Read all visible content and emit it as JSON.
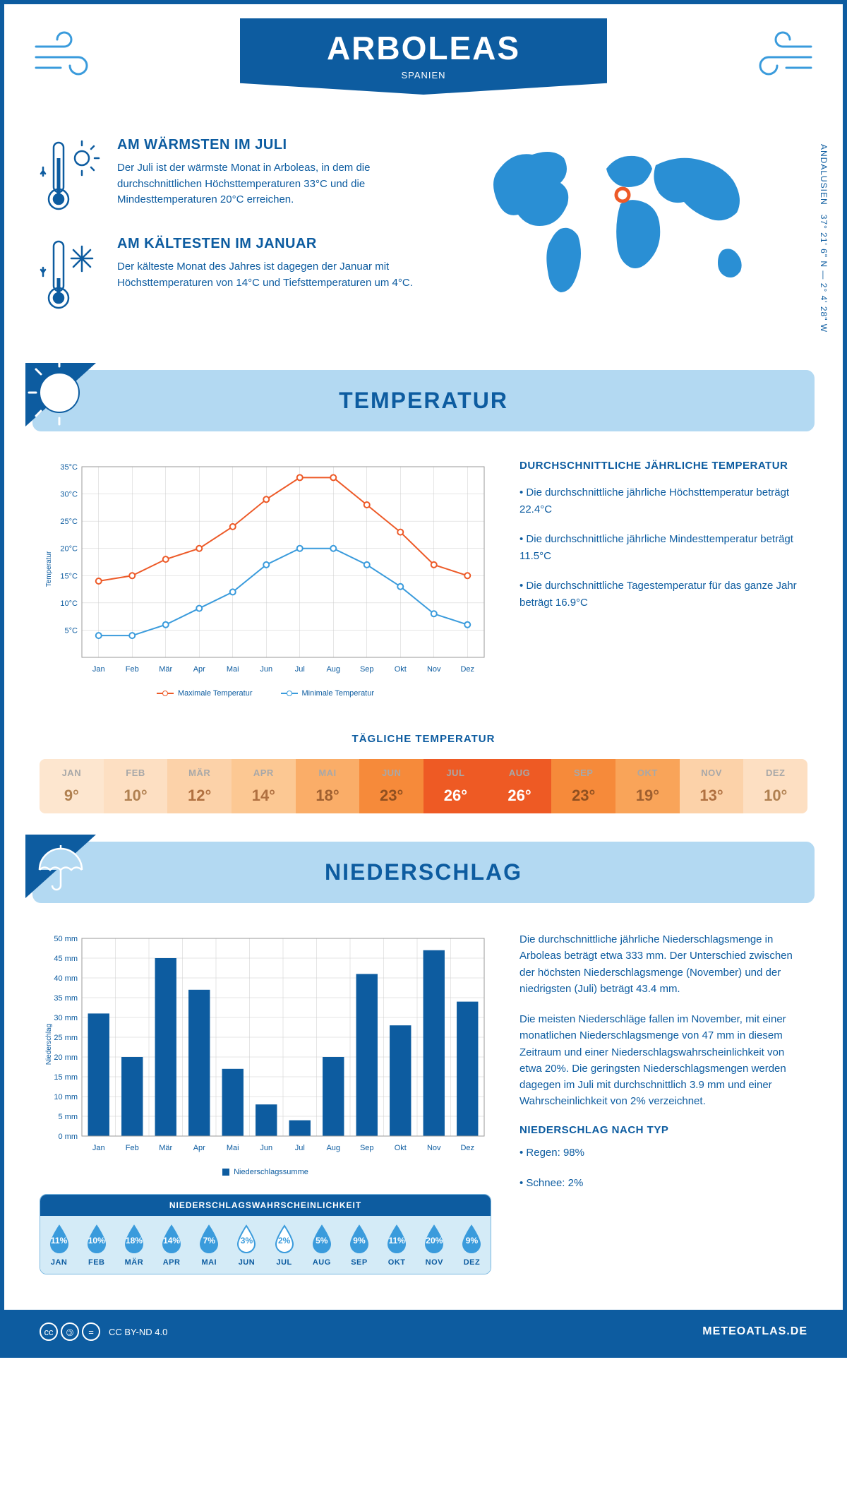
{
  "header": {
    "title": "ARBOLEAS",
    "country": "SPANIEN",
    "coords": "37° 21' 6\" N — 2° 4' 28\" W",
    "region": "ANDALUSIEN"
  },
  "intro": {
    "warm": {
      "title": "AM WÄRMSTEN IM JULI",
      "text": "Der Juli ist der wärmste Monat in Arboleas, in dem die durchschnittlichen Höchsttemperaturen 33°C und die Mindesttemperaturen 20°C erreichen."
    },
    "cold": {
      "title": "AM KÄLTESTEN IM JANUAR",
      "text": "Der kälteste Monat des Jahres ist dagegen der Januar mit Höchsttemperaturen von 14°C und Tiefsttemperaturen um 4°C."
    }
  },
  "sections": {
    "temperature": "TEMPERATUR",
    "precipitation": "NIEDERSCHLAG"
  },
  "temp_chart": {
    "months": [
      "Jan",
      "Feb",
      "Mär",
      "Apr",
      "Mai",
      "Jun",
      "Jul",
      "Aug",
      "Sep",
      "Okt",
      "Nov",
      "Dez"
    ],
    "max": [
      14,
      15,
      18,
      20,
      24,
      29,
      33,
      33,
      28,
      23,
      17,
      15
    ],
    "min": [
      4,
      4,
      6,
      9,
      12,
      17,
      20,
      20,
      17,
      13,
      8,
      6
    ],
    "max_color": "#ed5a28",
    "min_color": "#3a9bdc",
    "ylabel": "Temperatur",
    "yticks": [
      0,
      5,
      10,
      15,
      20,
      25,
      30,
      35
    ],
    "ytick_labels": [
      "",
      "5°C",
      "10°C",
      "15°C",
      "20°C",
      "25°C",
      "30°C",
      "35°C"
    ],
    "legend_max": "Maximale Temperatur",
    "legend_min": "Minimale Temperatur"
  },
  "temp_info": {
    "title": "DURCHSCHNITTLICHE JÄHRLICHE TEMPERATUR",
    "p1": "• Die durchschnittliche jährliche Höchsttemperatur beträgt 22.4°C",
    "p2": "• Die durchschnittliche jährliche Mindesttemperatur beträgt 11.5°C",
    "p3": "• Die durchschnittliche Tagestemperatur für das ganze Jahr beträgt 16.9°C"
  },
  "daily_temp": {
    "title": "TÄGLICHE TEMPERATUR",
    "months": [
      "JAN",
      "FEB",
      "MÄR",
      "APR",
      "MAI",
      "JUN",
      "JUL",
      "AUG",
      "SEP",
      "OKT",
      "NOV",
      "DEZ"
    ],
    "values": [
      "9°",
      "10°",
      "12°",
      "14°",
      "18°",
      "23°",
      "26°",
      "26°",
      "23°",
      "19°",
      "13°",
      "10°"
    ],
    "bg_colors": [
      "#fde6cf",
      "#fddfc2",
      "#fcd2a9",
      "#fcc893",
      "#faad68",
      "#f68a3a",
      "#ee5a24",
      "#ee5a24",
      "#f68a3a",
      "#f9a459",
      "#fcd2a9",
      "#fddfc2"
    ],
    "text_colors": [
      "#b08050",
      "#b08050",
      "#b07040",
      "#b07040",
      "#a06030",
      "#905020",
      "#ffffff",
      "#ffffff",
      "#905020",
      "#a06030",
      "#b07040",
      "#b08050"
    ]
  },
  "precip_chart": {
    "months": [
      "Jan",
      "Feb",
      "Mär",
      "Apr",
      "Mai",
      "Jun",
      "Jul",
      "Aug",
      "Sep",
      "Okt",
      "Nov",
      "Dez"
    ],
    "values": [
      31,
      20,
      45,
      37,
      17,
      8,
      4,
      20,
      41,
      28,
      47,
      34
    ],
    "bar_color": "#0d5ca0",
    "ylabel": "Niederschlag",
    "yticks": [
      0,
      5,
      10,
      15,
      20,
      25,
      30,
      35,
      40,
      45,
      50
    ],
    "ytick_labels": [
      "0 mm",
      "5 mm",
      "10 mm",
      "15 mm",
      "20 mm",
      "25 mm",
      "30 mm",
      "35 mm",
      "40 mm",
      "45 mm",
      "50 mm"
    ],
    "legend": "Niederschlagssumme"
  },
  "precip_info": {
    "p1": "Die durchschnittliche jährliche Niederschlagsmenge in Arboleas beträgt etwa 333 mm. Der Unterschied zwischen der höchsten Niederschlagsmenge (November) und der niedrigsten (Juli) beträgt 43.4 mm.",
    "p2": "Die meisten Niederschläge fallen im November, mit einer monatlichen Niederschlagsmenge von 47 mm in diesem Zeitraum und einer Niederschlagswahrscheinlichkeit von etwa 20%. Die geringsten Niederschlagsmengen werden dagegen im Juli mit durchschnittlich 3.9 mm und einer Wahrscheinlichkeit von 2% verzeichnet.",
    "type_title": "NIEDERSCHLAG NACH TYP",
    "type1": "• Regen: 98%",
    "type2": "• Schnee: 2%"
  },
  "prob": {
    "title": "NIEDERSCHLAGSWAHRSCHEINLICHKEIT",
    "months": [
      "JAN",
      "FEB",
      "MÄR",
      "APR",
      "MAI",
      "JUN",
      "JUL",
      "AUG",
      "SEP",
      "OKT",
      "NOV",
      "DEZ"
    ],
    "values": [
      "11%",
      "10%",
      "18%",
      "14%",
      "7%",
      "3%",
      "2%",
      "5%",
      "9%",
      "11%",
      "20%",
      "9%"
    ],
    "filled": [
      true,
      true,
      true,
      true,
      true,
      false,
      false,
      true,
      true,
      true,
      true,
      true
    ]
  },
  "footer": {
    "license": "CC BY-ND 4.0",
    "brand": "METEOATLAS.DE"
  }
}
